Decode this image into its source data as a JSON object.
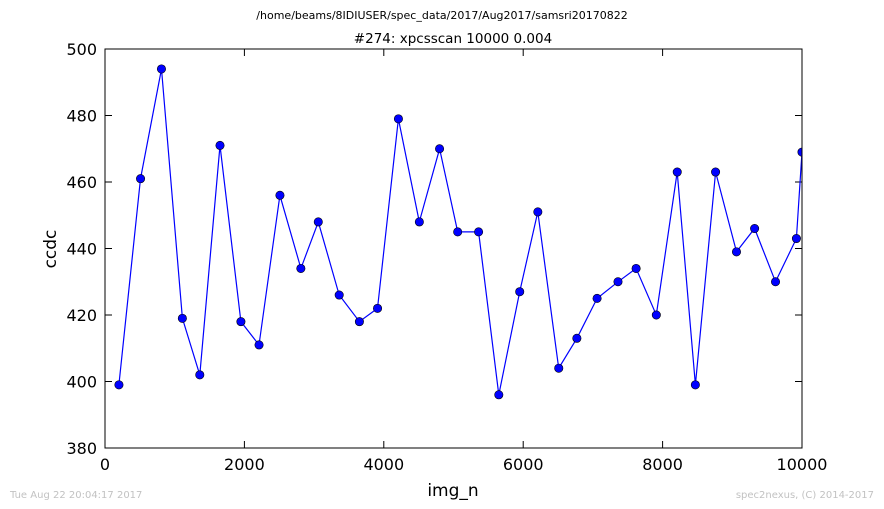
{
  "header": {
    "path": "/home/beams/8IDIUSER/spec_data/2017/Aug2017/samsri20170822",
    "scan": "#274: xpcsscan 10000 0.004"
  },
  "footer": {
    "timestamp": "Tue Aug 22 20:04:17 2017",
    "credit": "spec2nexus, (C) 2014-2017"
  },
  "colors": {
    "series": "#0000ff",
    "marker_fill": "#0000ff",
    "marker_edge": "#000000"
  },
  "chart_data": {
    "type": "line",
    "xlabel": "img_n",
    "ylabel": "ccdc",
    "xlim": [
      0,
      10000
    ],
    "ylim": [
      380,
      500
    ],
    "xticks": [
      0,
      2000,
      4000,
      6000,
      8000,
      10000
    ],
    "yticks": [
      380,
      400,
      420,
      440,
      460,
      480,
      500
    ],
    "grid": false,
    "series": [
      {
        "x": [
          200,
          510,
          810,
          1110,
          1360,
          1650,
          1950,
          2210,
          2510,
          2810,
          3060,
          3360,
          3650,
          3910,
          4210,
          4510,
          4800,
          5060,
          5360,
          5650,
          5950,
          6210,
          6510,
          6770,
          7060,
          7360,
          7620,
          7910,
          8210,
          8470,
          8760,
          9060,
          9320,
          9620,
          9920,
          10000
        ],
        "y": [
          399,
          461,
          494,
          419,
          402,
          471,
          418,
          411,
          456,
          434,
          448,
          426,
          418,
          422,
          479,
          448,
          470,
          445,
          445,
          396,
          427,
          451,
          404,
          413,
          425,
          430,
          434,
          420,
          463,
          399,
          463,
          439,
          446,
          430,
          443,
          469
        ]
      }
    ]
  }
}
